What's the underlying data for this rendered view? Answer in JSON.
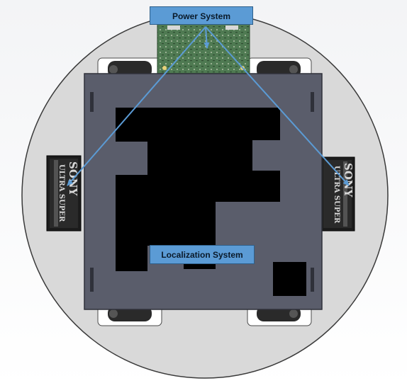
{
  "labels": {
    "power": "Power System",
    "localization": "Localization System"
  },
  "battery_text": {
    "brand": "SONY",
    "product": "ULTRA SUPER"
  },
  "colors": {
    "arrow": "#5b9bd5",
    "label_fill": "#5b9bd5",
    "plate": "#5a5d6b",
    "chassis": "#d9d9d9",
    "pcb": "#4f7a52"
  },
  "icons": {
    "left_battery": "battery-icon",
    "right_battery": "battery-icon",
    "power_board": "circuit-board-icon"
  }
}
